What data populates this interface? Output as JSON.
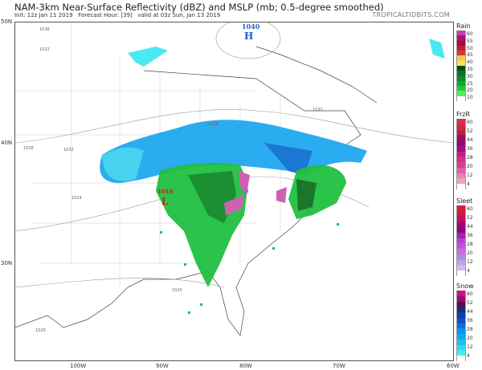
{
  "header": {
    "title": "NAM-3km Near-Surface Reflectivity (dBZ) and MSLP (mb; 0.5-degree smoothed)",
    "init": "Init: 12z Jan 11 2019",
    "forecast_hour": "Forecast Hour: [39]",
    "valid": "valid at 03z Sun, Jan 13 2019",
    "brand": "TROPICALTIDBITS.COM"
  },
  "map": {
    "lat_labels": [
      "50N",
      "40N",
      "30N"
    ],
    "lon_labels": [
      "100W",
      "90W",
      "80W",
      "70W",
      "60W"
    ],
    "pressure_centers": [
      {
        "type": "H",
        "value": "1040",
        "color": "#1f5fc8"
      },
      {
        "type": "L",
        "value": "1016",
        "color": "#d02020"
      }
    ],
    "isobar_labels": [
      "1036",
      "1032",
      "1032",
      "1028",
      "1028",
      "1024",
      "1020",
      "1020",
      "1032"
    ]
  },
  "legends": [
    {
      "title": "Rain",
      "labels": [
        "60",
        "55",
        "50",
        "45",
        "40",
        "35",
        "30",
        "25",
        "20",
        "10"
      ],
      "colors": [
        "#c040b0",
        "#b01070",
        "#a01030",
        "#c02040",
        "#e03040",
        "#f0d040",
        "#ffe060",
        "#005010",
        "#107020",
        "#108a28",
        "#10a830",
        "#20c840",
        "#50f050",
        "#ffffff"
      ]
    },
    {
      "title": "FrzR",
      "labels": [
        "60",
        "52",
        "44",
        "36",
        "28",
        "20",
        "12",
        "4"
      ],
      "colors": [
        "#e03040",
        "#d02848",
        "#c02048",
        "#a01050",
        "#900870",
        "#a01080",
        "#c02080",
        "#d03090",
        "#d84090",
        "#e060a0",
        "#e880b0",
        "#f0a0c0",
        "#ffffff"
      ]
    },
    {
      "title": "Sleet",
      "labels": [
        "60",
        "52",
        "44",
        "36",
        "28",
        "20",
        "12",
        "4"
      ],
      "colors": [
        "#d02040",
        "#c81850",
        "#c01060",
        "#a00870",
        "#900080",
        "#a020b0",
        "#b840d0",
        "#c050e0",
        "#c070e0",
        "#b088e0",
        "#c0a0f0",
        "#d0b8f0",
        "#ffffff"
      ]
    },
    {
      "title": "Snow",
      "labels": [
        "60",
        "52",
        "44",
        "36",
        "28",
        "20",
        "12",
        "4"
      ],
      "colors": [
        "#d01090",
        "#a00870",
        "#700050",
        "#103080",
        "#1040a0",
        "#1050c0",
        "#1070e0",
        "#1090f0",
        "#10a8f0",
        "#20c0f0",
        "#30d8f0",
        "#40f0f0",
        "#ffffff"
      ]
    }
  ]
}
